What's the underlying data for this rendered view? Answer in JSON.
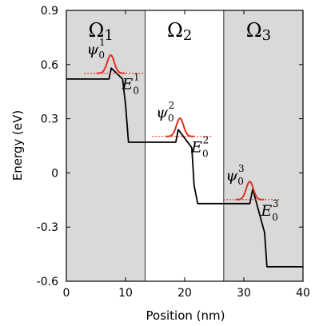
{
  "chart_data": {
    "type": "line",
    "title": "",
    "xlabel": "Position (nm)",
    "ylabel": "Energy (eV)",
    "xlim": [
      0,
      40
    ],
    "ylim": [
      -0.6,
      0.9
    ],
    "xticks": [
      0,
      10,
      20,
      30,
      40
    ],
    "yticks": [
      -0.6,
      -0.3,
      0,
      0.3,
      0.6,
      0.9
    ],
    "ytick_labels": [
      "-0.6",
      "-0.3",
      "0",
      "0.3",
      "0.6",
      "0.9"
    ],
    "grid": false,
    "regions": [
      {
        "name": "Ω1",
        "symbol": "Ω",
        "index": "1",
        "x_range": [
          0,
          13.3
        ],
        "fill": "#d9d9d9"
      },
      {
        "name": "Ω2",
        "symbol": "Ω",
        "index": "2",
        "x_range": [
          13.3,
          26.6
        ],
        "fill": "#ffffff"
      },
      {
        "name": "Ω3",
        "symbol": "Ω",
        "index": "3",
        "x_range": [
          26.6,
          40
        ],
        "fill": "#d9d9d9"
      }
    ],
    "potential": {
      "color": "#000000",
      "x": [
        0,
        7.2,
        7.6,
        9.5,
        10.0,
        10.5,
        18.5,
        18.9,
        21.2,
        21.6,
        22.2,
        31.0,
        31.5,
        33.5,
        33.9,
        40.0
      ],
      "y": [
        0.52,
        0.52,
        0.58,
        0.52,
        0.38,
        0.17,
        0.17,
        0.24,
        0.14,
        -0.07,
        -0.17,
        -0.17,
        -0.09,
        -0.33,
        -0.52,
        -0.52
      ]
    },
    "wavefunctions": [
      {
        "label": "ψ",
        "index": "1",
        "energy_label": "E",
        "energy_sub": "0",
        "energy_sup": "1",
        "center": 7.5,
        "width": 0.6,
        "amplitude": 0.1,
        "baseline": 0.552,
        "line_x": [
          3.0,
          13.0
        ]
      },
      {
        "label": "ψ",
        "index": "2",
        "energy_label": "E",
        "energy_sub": "0",
        "energy_sup": "2",
        "center": 19.2,
        "width": 0.6,
        "amplitude": 0.1,
        "baseline": 0.202,
        "line_x": [
          14.5,
          24.5
        ]
      },
      {
        "label": "ψ",
        "index": "3",
        "energy_label": "E",
        "energy_sub": "0",
        "energy_sup": "3",
        "center": 31.0,
        "width": 0.6,
        "amplitude": 0.1,
        "baseline": -0.148,
        "line_x": [
          26.5,
          36.0
        ]
      }
    ],
    "wave_color": "#e0301e",
    "ground_symbol": "0"
  }
}
